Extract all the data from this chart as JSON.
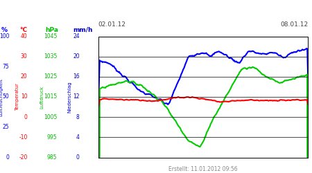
{
  "title_left": "02.01.12",
  "title_right": "08.01.12",
  "footer": "Erstellt: 11.01.2012 09:56",
  "bg_color": "#ffffff",
  "plot_bg_color": "#ffffff",
  "left_labels": {
    "humidity_label": "Luftfeuchtigkeit",
    "humidity_color": "#0000ff",
    "humidity_unit": "%",
    "temp_label": "Temperatur",
    "temp_color": "#ff0000",
    "temp_unit": "°C",
    "pressure_label": "Luftdruck",
    "pressure_color": "#00bb00",
    "pressure_unit": "hPa",
    "precip_label": "Niederschlag",
    "precip_color": "#0000cc",
    "precip_unit": "mm/h"
  },
  "hum_ticks": [
    0,
    25,
    50,
    75,
    100
  ],
  "temp_ticks": [
    -20,
    -10,
    0,
    10,
    20,
    30,
    40
  ],
  "pres_ticks": [
    985,
    995,
    1005,
    1015,
    1025,
    1035,
    1045
  ],
  "prec_ticks": [
    0,
    4,
    8,
    12,
    16,
    20,
    24
  ],
  "hum_min": 0,
  "hum_max": 100,
  "temp_min": -20,
  "temp_max": 40,
  "pres_min": 985,
  "pres_max": 1045,
  "prec_min": 0,
  "prec_max": 24,
  "blue_color": "#0000ff",
  "green_color": "#00cc00",
  "red_color": "#ff0000",
  "line_width": 1.5
}
